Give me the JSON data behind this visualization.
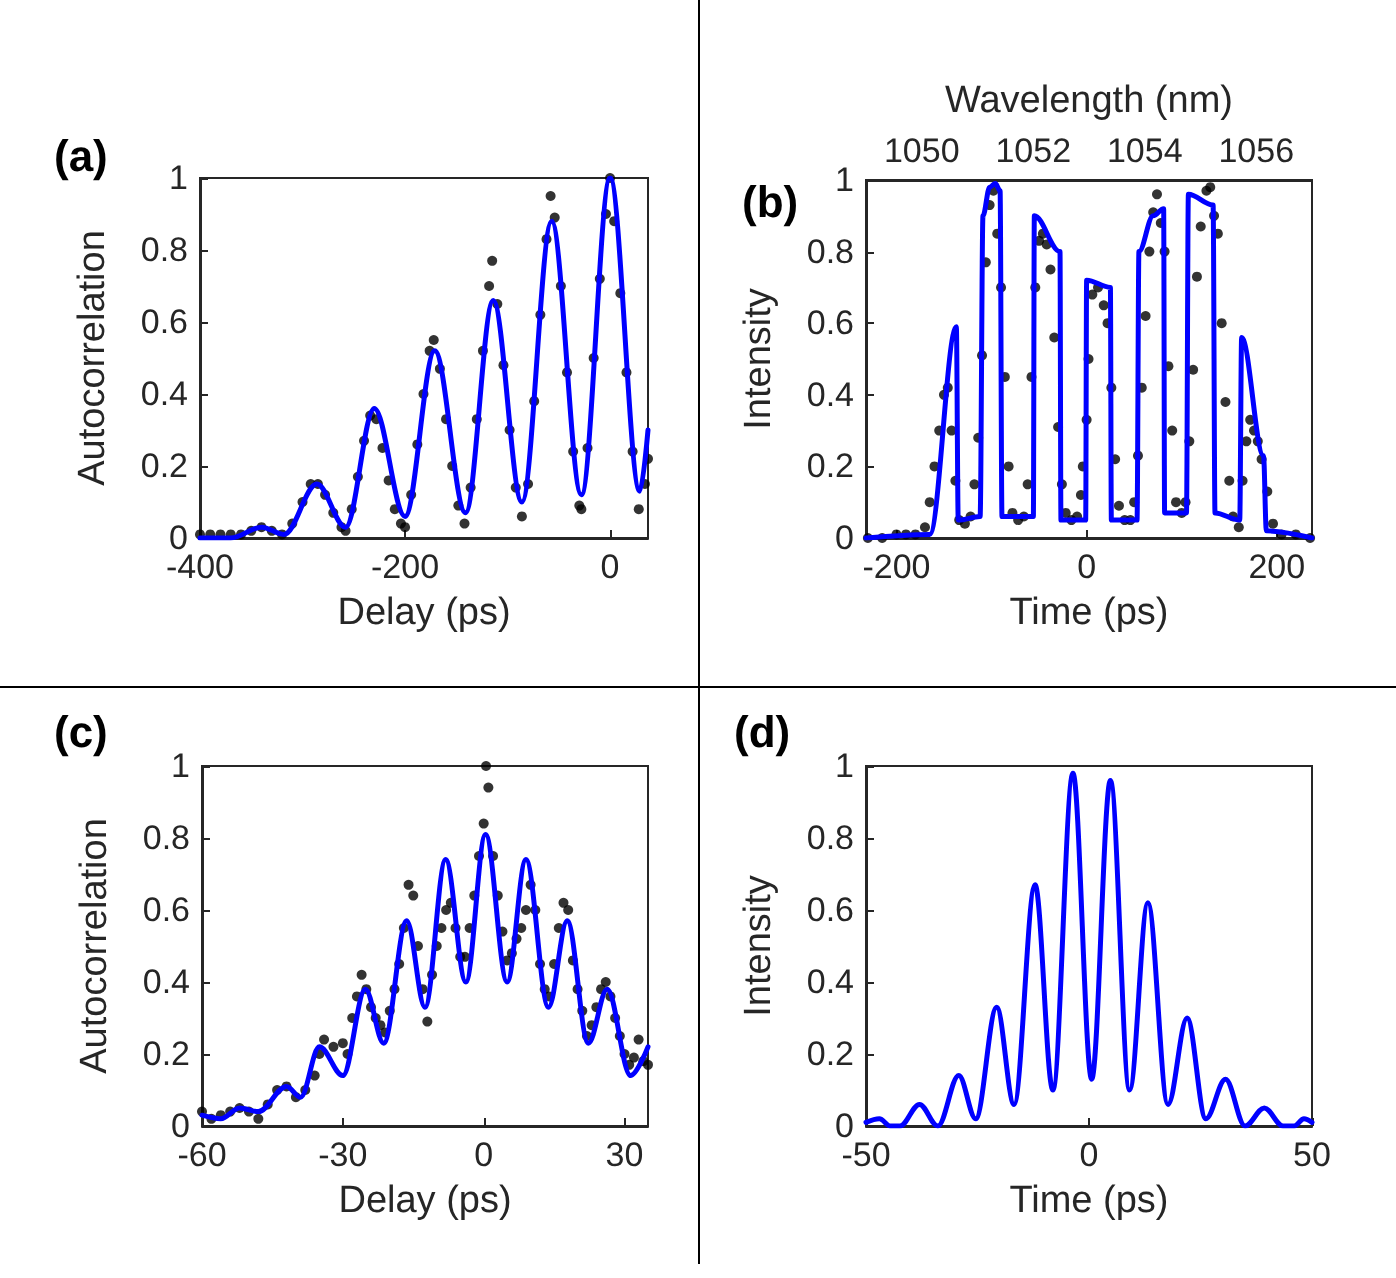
{
  "chart_data": [
    {
      "type": "scatter",
      "title": "(a)",
      "xlabel": "Delay (ps)",
      "ylabel": "Autocorrelation",
      "xlim": [
        -400,
        37
      ],
      "xticks": [
        -400,
        -200,
        0
      ],
      "ylim": [
        0,
        1
      ],
      "yticks": [
        0,
        0.2,
        0.4,
        0.6,
        0.8,
        1
      ],
      "series": [
        {
          "marker": "circle",
          "color": "#000000",
          "x": [
            -400,
            -390,
            -380,
            -370,
            -360,
            -350,
            -340,
            -330,
            -320,
            -310,
            -300,
            -292,
            -285,
            -278,
            -270,
            -262,
            -258,
            -252,
            -246,
            -240,
            -234,
            -228,
            -222,
            -216,
            -210,
            -204,
            -200,
            -194,
            -188,
            -182,
            -176,
            -172,
            -166,
            -160,
            -154,
            -148,
            -142,
            -136,
            -130,
            -124,
            -118,
            -115,
            -110,
            -104,
            -98,
            -92,
            -86,
            -80,
            -74,
            -68,
            -62,
            -58,
            -54,
            -48,
            -42,
            -36,
            -30,
            -28,
            -22,
            -16,
            -10,
            -4,
            0,
            4,
            10,
            16,
            22,
            28,
            34,
            37
          ],
          "values": [
            0.01,
            0.01,
            0.01,
            0.01,
            0.01,
            0.02,
            0.03,
            0.02,
            0.01,
            0.04,
            0.1,
            0.15,
            0.15,
            0.12,
            0.07,
            0.03,
            0.02,
            0.08,
            0.17,
            0.27,
            0.34,
            0.33,
            0.25,
            0.16,
            0.08,
            0.04,
            0.03,
            0.12,
            0.26,
            0.4,
            0.52,
            0.55,
            0.47,
            0.33,
            0.2,
            0.09,
            0.04,
            0.14,
            0.33,
            0.52,
            0.7,
            0.77,
            0.65,
            0.48,
            0.3,
            0.14,
            0.06,
            0.15,
            0.38,
            0.62,
            0.83,
            0.95,
            0.89,
            0.7,
            0.46,
            0.24,
            0.09,
            0.08,
            0.25,
            0.5,
            0.72,
            0.9,
            1.0,
            0.88,
            0.68,
            0.46,
            0.24,
            0.08,
            0.15,
            0.22
          ]
        },
        {
          "type": "line",
          "marker": "none",
          "color": "#0000ff",
          "x": [
            -400,
            -370,
            -340,
            -318,
            -286,
            -258,
            -230,
            -200,
            -171,
            -141,
            -114,
            -86,
            -57,
            -28,
            0,
            29,
            37
          ],
          "values": [
            0.0,
            0.0,
            0.03,
            0.01,
            0.15,
            0.03,
            0.36,
            0.06,
            0.52,
            0.07,
            0.66,
            0.1,
            0.88,
            0.12,
            1.0,
            0.13,
            0.3
          ]
        }
      ]
    },
    {
      "type": "scatter",
      "title": "(b)",
      "xlabel": "Time (ps)",
      "ylabel": "Intensity",
      "x2label": "Wavelength (nm)",
      "xlim": [
        -232,
        237
      ],
      "xticks": [
        -200,
        0,
        200
      ],
      "x2lim": [
        1049,
        1057
      ],
      "x2ticks": [
        1050,
        1052,
        1054,
        1056
      ],
      "ylim": [
        0,
        1
      ],
      "yticks": [
        0,
        0.2,
        0.4,
        0.6,
        0.8,
        1
      ],
      "series": [
        {
          "marker": "circle",
          "color": "#000000",
          "x": [
            -230,
            -215,
            -200,
            -190,
            -180,
            -170,
            -165,
            -160,
            -155,
            -150,
            -146,
            -142,
            -138,
            -134,
            -128,
            -122,
            -118,
            -114,
            -110,
            -106,
            -102,
            -98,
            -94,
            -90,
            -86,
            -82,
            -78,
            -72,
            -66,
            -62,
            -58,
            -54,
            -50,
            -46,
            -42,
            -38,
            -34,
            -30,
            -26,
            -22,
            -16,
            -10,
            -6,
            -4,
            0,
            2,
            6,
            12,
            18,
            22,
            26,
            30,
            34,
            40,
            46,
            50,
            54,
            58,
            62,
            66,
            70,
            74,
            78,
            82,
            86,
            90,
            94,
            100,
            104,
            108,
            112,
            116,
            120,
            126,
            130,
            134,
            138,
            142,
            146,
            150,
            154,
            160,
            164,
            168,
            172,
            176,
            180,
            184,
            190,
            196,
            205,
            220,
            235
          ],
          "values": [
            0.0,
            0.0,
            0.01,
            0.01,
            0.01,
            0.03,
            0.1,
            0.2,
            0.3,
            0.4,
            0.42,
            0.3,
            0.16,
            0.05,
            0.04,
            0.06,
            0.15,
            0.28,
            0.51,
            0.77,
            0.93,
            0.97,
            0.85,
            0.7,
            0.45,
            0.2,
            0.07,
            0.05,
            0.06,
            0.15,
            0.45,
            0.7,
            0.83,
            0.85,
            0.82,
            0.75,
            0.56,
            0.31,
            0.15,
            0.07,
            0.05,
            0.06,
            0.12,
            0.2,
            0.33,
            0.5,
            0.68,
            0.7,
            0.65,
            0.6,
            0.42,
            0.22,
            0.09,
            0.05,
            0.05,
            0.1,
            0.23,
            0.42,
            0.62,
            0.8,
            0.91,
            0.96,
            0.88,
            0.8,
            0.48,
            0.3,
            0.1,
            0.07,
            0.1,
            0.27,
            0.47,
            0.73,
            0.87,
            0.97,
            0.98,
            0.9,
            0.85,
            0.6,
            0.38,
            0.16,
            0.06,
            0.03,
            0.16,
            0.27,
            0.33,
            0.3,
            0.27,
            0.22,
            0.13,
            0.04,
            0.01,
            0.01,
            0.0
          ]
        },
        {
          "type": "line",
          "marker": "none",
          "color": "#0000ff",
          "x": [
            -232,
            -165,
            -137,
            -135,
            -112,
            -109,
            -102,
            -96,
            -91,
            -89,
            -56,
            -55,
            -28,
            -27,
            -1,
            0,
            25,
            26,
            53,
            55,
            70,
            81,
            82,
            105,
            107,
            133,
            135,
            161,
            163,
            186,
            189,
            237
          ],
          "values": [
            0.0,
            0.01,
            0.59,
            0.05,
            0.06,
            0.9,
            0.98,
            0.99,
            0.97,
            0.06,
            0.06,
            0.9,
            0.8,
            0.05,
            0.05,
            0.72,
            0.7,
            0.05,
            0.05,
            0.8,
            0.9,
            0.92,
            0.07,
            0.07,
            0.96,
            0.93,
            0.07,
            0.05,
            0.56,
            0.23,
            0.02,
            0.0
          ]
        }
      ]
    },
    {
      "type": "scatter",
      "title": "(c)",
      "xlabel": "Delay (ps)",
      "ylabel": "Autocorrelation",
      "xlim": [
        -60,
        35
      ],
      "xticks": [
        -60,
        -30,
        0,
        30
      ],
      "ylim": [
        0,
        1
      ],
      "yticks": [
        0,
        0.2,
        0.4,
        0.6,
        0.8,
        1
      ],
      "series": [
        {
          "marker": "circle",
          "color": "#000000",
          "x": [
            -60,
            -58,
            -56,
            -54,
            -52,
            -50,
            -48,
            -46,
            -44,
            -42,
            -40,
            -38,
            -36,
            -35,
            -34,
            -32,
            -30,
            -29,
            -28,
            -27,
            -26,
            -25,
            -24,
            -23,
            -22,
            -21,
            -20,
            -19,
            -18,
            -17,
            -16,
            -15,
            -14,
            -13,
            -12,
            -11,
            -10,
            -9,
            -8,
            -7,
            -6,
            -5,
            -4,
            -3,
            -2,
            -1,
            0,
            0.5,
            1,
            2,
            3,
            4,
            5,
            6,
            7,
            8,
            9,
            10,
            11,
            12,
            13,
            14,
            15,
            16,
            17,
            18,
            19,
            20,
            21,
            22,
            23,
            24,
            25,
            26,
            27,
            28,
            29,
            30,
            31,
            32,
            33,
            34,
            35
          ],
          "values": [
            0.04,
            0.02,
            0.03,
            0.04,
            0.05,
            0.04,
            0.02,
            0.06,
            0.1,
            0.11,
            0.08,
            0.1,
            0.14,
            0.2,
            0.24,
            0.22,
            0.23,
            0.2,
            0.3,
            0.36,
            0.42,
            0.38,
            0.33,
            0.3,
            0.28,
            0.26,
            0.32,
            0.38,
            0.45,
            0.55,
            0.67,
            0.64,
            0.5,
            0.38,
            0.29,
            0.42,
            0.5,
            0.55,
            0.6,
            0.62,
            0.55,
            0.47,
            0.47,
            0.55,
            0.64,
            0.75,
            0.84,
            1.0,
            0.94,
            0.75,
            0.64,
            0.54,
            0.46,
            0.48,
            0.52,
            0.55,
            0.6,
            0.67,
            0.6,
            0.45,
            0.38,
            0.36,
            0.45,
            0.55,
            0.62,
            0.6,
            0.46,
            0.38,
            0.32,
            0.25,
            0.28,
            0.33,
            0.38,
            0.4,
            0.36,
            0.3,
            0.25,
            0.2,
            0.17,
            0.19,
            0.24,
            0.18,
            0.17
          ]
        },
        {
          "type": "line",
          "marker": "none",
          "color": "#0000ff",
          "x": [
            -60,
            -56,
            -52,
            -48,
            -42,
            -39,
            -35,
            -30,
            -25.2,
            -21.3,
            -16.4,
            -12.5,
            -8.1,
            -3.8,
            0.4,
            5,
            9,
            13.8,
            17.8,
            22.3,
            26.3,
            31.3,
            35
          ],
          "values": [
            0.03,
            0.02,
            0.05,
            0.04,
            0.11,
            0.08,
            0.22,
            0.14,
            0.38,
            0.23,
            0.57,
            0.33,
            0.74,
            0.4,
            0.81,
            0.4,
            0.74,
            0.33,
            0.57,
            0.23,
            0.38,
            0.14,
            0.22
          ]
        }
      ]
    },
    {
      "type": "line",
      "title": "(d)",
      "xlabel": "Time (ps)",
      "ylabel": "Intensity",
      "xlim": [
        -50,
        50
      ],
      "xticks": [
        -50,
        0,
        50
      ],
      "ylim": [
        0,
        1
      ],
      "yticks": [
        0,
        0.2,
        0.4,
        0.6,
        0.8,
        1
      ],
      "series": [
        {
          "marker": "none",
          "color": "#0000ff",
          "x": [
            -50,
            -47,
            -44.5,
            -42.4,
            -38,
            -33.9,
            -29.2,
            -25.4,
            -20.7,
            -16.8,
            -12.1,
            -8.1,
            -3.6,
            0.6,
            4.8,
            9.1,
            13.2,
            17.7,
            22,
            26.2,
            30.6,
            35,
            39.3,
            43.5,
            46,
            48.2,
            50
          ],
          "values": [
            0.01,
            0.02,
            0.0,
            0.0,
            0.06,
            0.0,
            0.14,
            0.02,
            0.33,
            0.06,
            0.67,
            0.1,
            0.98,
            0.13,
            0.96,
            0.1,
            0.62,
            0.06,
            0.3,
            0.02,
            0.13,
            0.0,
            0.05,
            0.0,
            0.0,
            0.02,
            0.01
          ]
        }
      ]
    }
  ]
}
